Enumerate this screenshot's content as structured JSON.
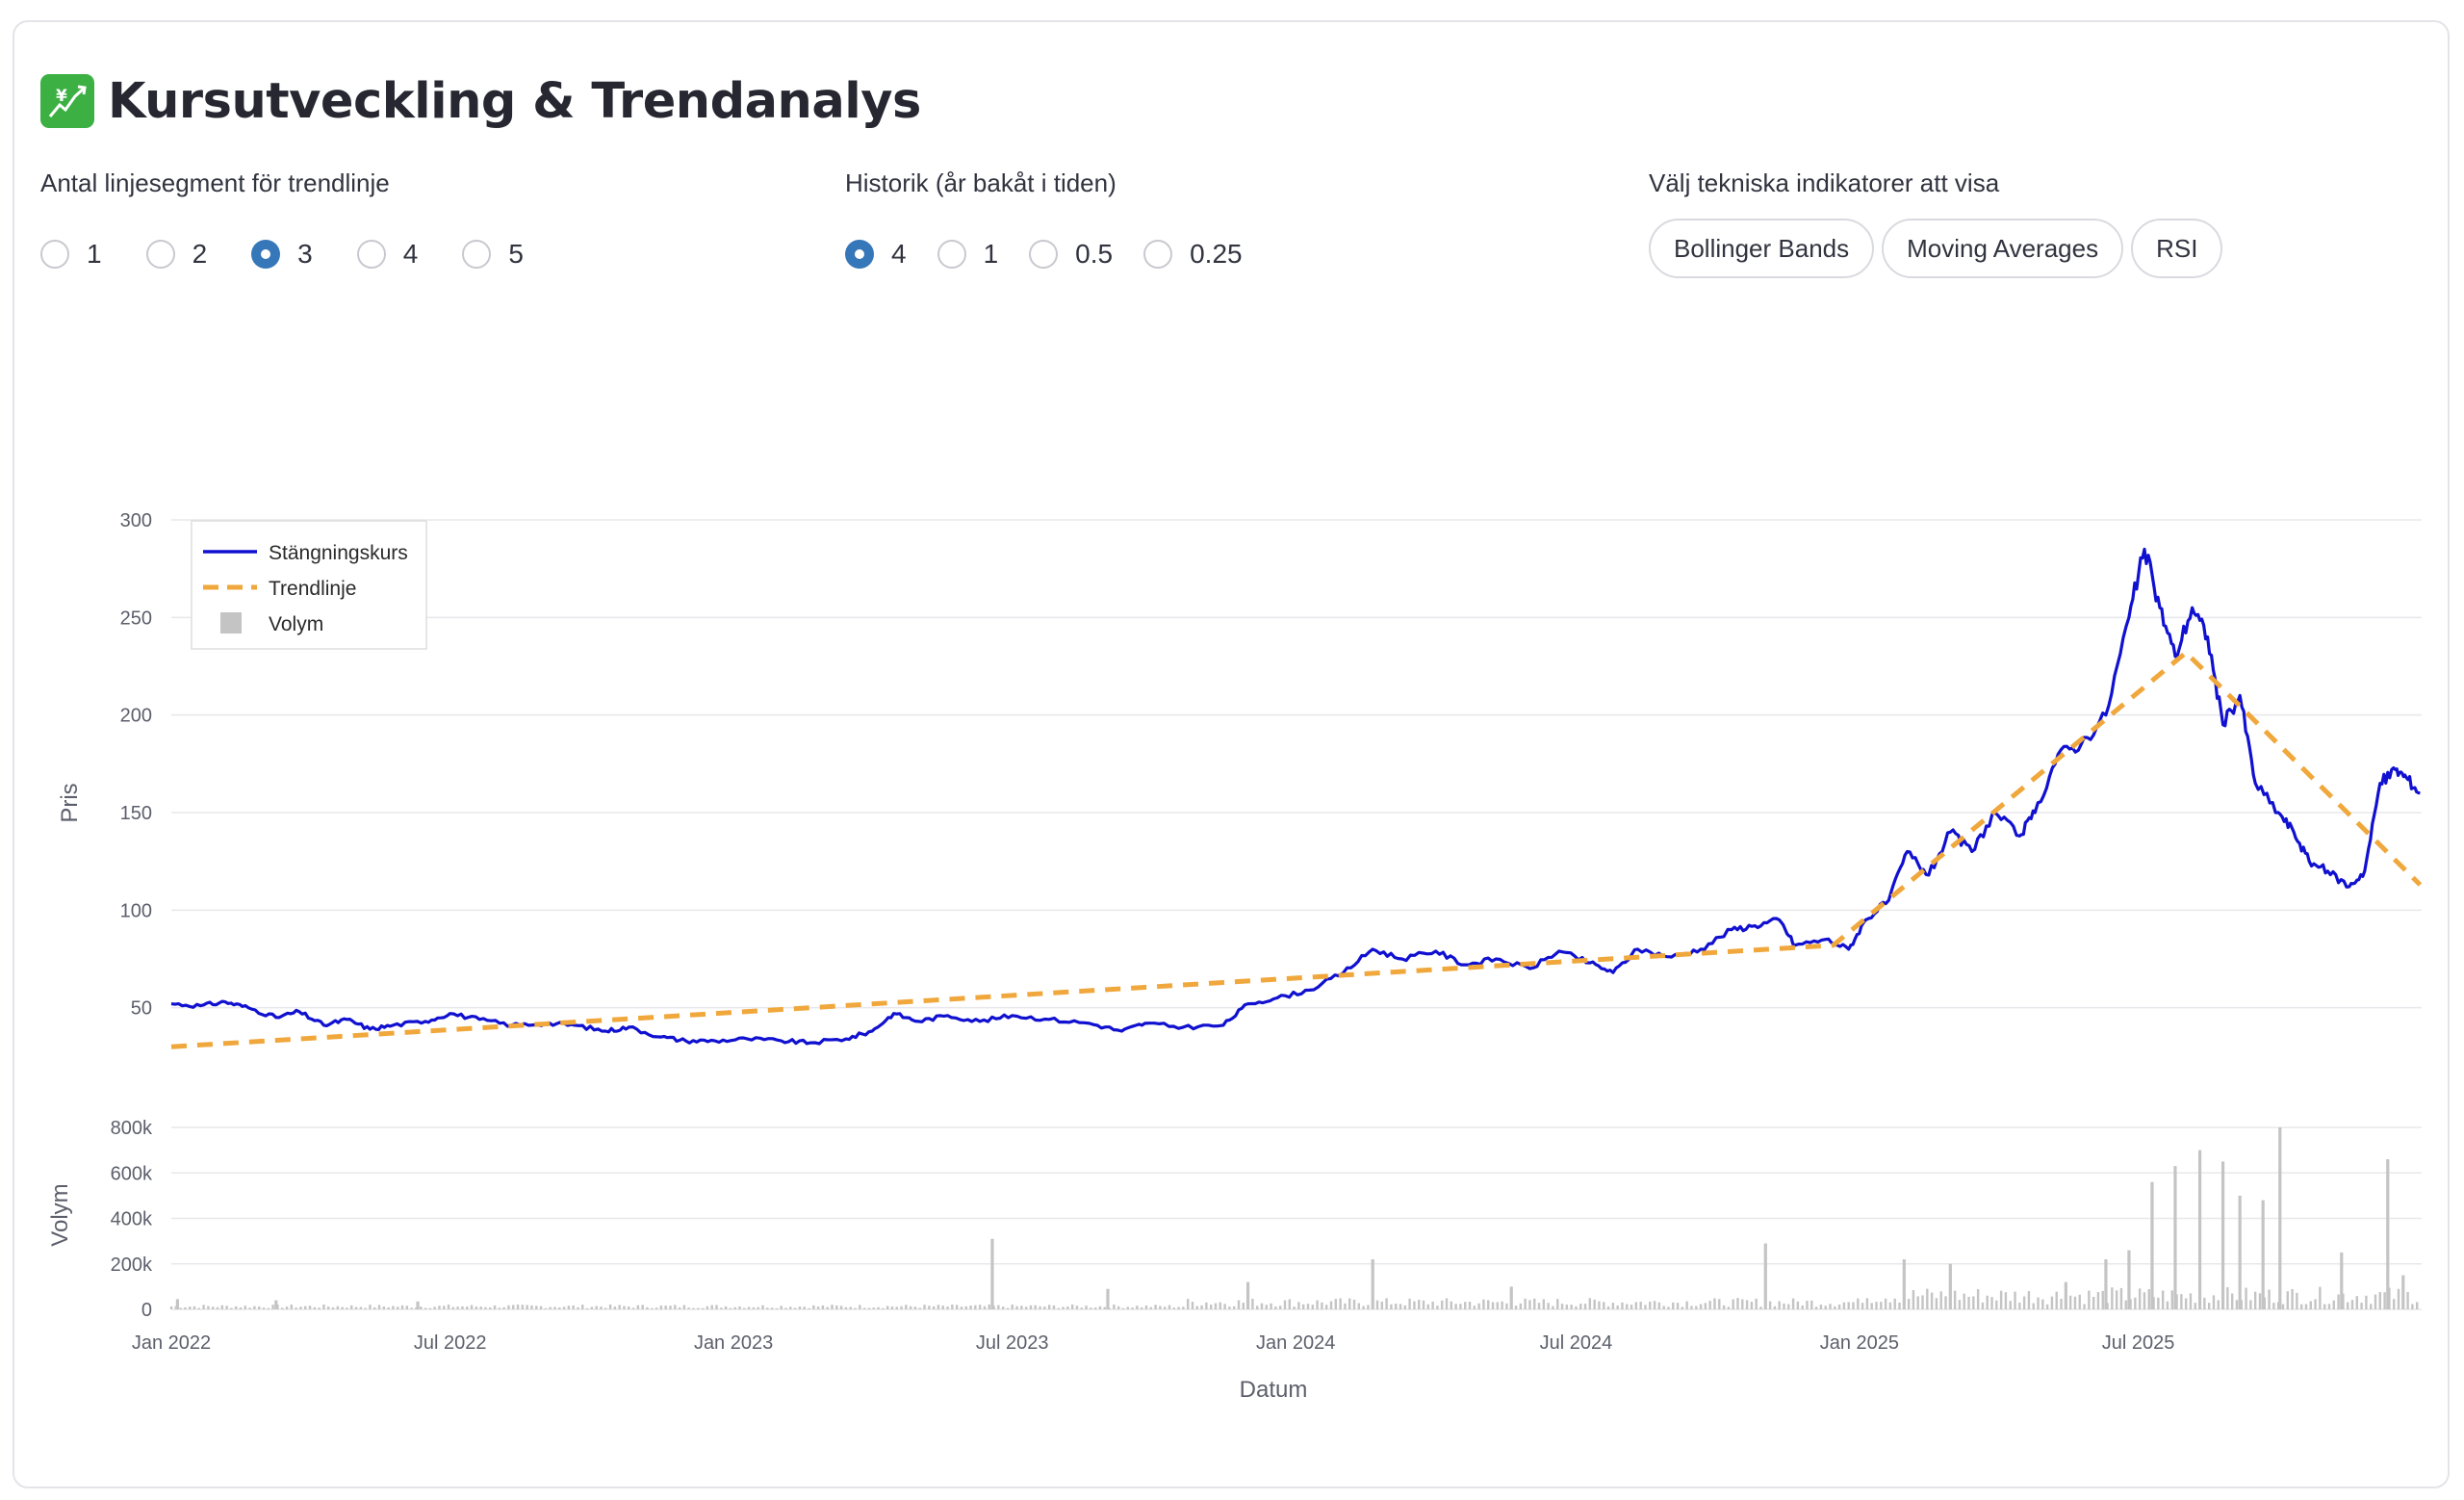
{
  "header": {
    "title": "Kursutveckling & Trendanalys",
    "icon": "chart-increasing-yen-icon"
  },
  "controls": {
    "segments": {
      "label": "Antal linjesegment för trendlinje",
      "options": [
        "1",
        "2",
        "3",
        "4",
        "5"
      ],
      "selected": "3"
    },
    "history": {
      "label": "Historik (år bakåt i tiden)",
      "options": [
        "4",
        "1",
        "0.5",
        "0.25"
      ],
      "selected": "4"
    },
    "indicators": {
      "label": "Välj tekniska indikatorer att visa",
      "options": [
        "Bollinger Bands",
        "Moving Averages",
        "RSI"
      ]
    }
  },
  "chart_data": {
    "type": "line",
    "xlabel": "Datum",
    "ylabel": "Pris",
    "ylabel_volume": "Volym",
    "ylim": [
      0,
      300
    ],
    "volume_ylim": [
      0,
      800000
    ],
    "y_ticks": [
      50,
      100,
      150,
      200,
      250,
      300
    ],
    "volume_ticks": [
      {
        "value": 0,
        "label": "0"
      },
      {
        "value": 200000,
        "label": "200k"
      },
      {
        "value": 400000,
        "label": "400k"
      },
      {
        "value": 600000,
        "label": "600k"
      },
      {
        "value": 800000,
        "label": "800k"
      }
    ],
    "x_ticks": [
      {
        "date": "2022-01-01",
        "label": "Jan 2022"
      },
      {
        "date": "2022-07-01",
        "label": "Jul 2022"
      },
      {
        "date": "2023-01-01",
        "label": "Jan 2023"
      },
      {
        "date": "2023-07-01",
        "label": "Jul 2023"
      },
      {
        "date": "2024-01-01",
        "label": "Jan 2024"
      },
      {
        "date": "2024-07-01",
        "label": "Jul 2024"
      },
      {
        "date": "2025-01-01",
        "label": "Jan 2025"
      },
      {
        "date": "2025-07-01",
        "label": "Jul 2025"
      }
    ],
    "x_range": [
      "2022-01-01",
      "2026-01-01"
    ],
    "grid": true,
    "legend_position": "top-left",
    "colors": {
      "price": "#1010d0",
      "trend": "#f0a73b",
      "volume": "#c4c4c4"
    },
    "series": [
      {
        "name": "Stängningskurs",
        "style": "solid",
        "points": [
          [
            "2022-01-01",
            52
          ],
          [
            "2022-01-20",
            51
          ],
          [
            "2022-02-05",
            53
          ],
          [
            "2022-02-20",
            50
          ],
          [
            "2022-03-10",
            45
          ],
          [
            "2022-03-25",
            48
          ],
          [
            "2022-04-10",
            41
          ],
          [
            "2022-04-25",
            44
          ],
          [
            "2022-05-10",
            39
          ],
          [
            "2022-05-25",
            41
          ],
          [
            "2022-06-15",
            43
          ],
          [
            "2022-07-01",
            47
          ],
          [
            "2022-07-20",
            44
          ],
          [
            "2022-08-10",
            41
          ],
          [
            "2022-09-01",
            42
          ],
          [
            "2022-09-20",
            41
          ],
          [
            "2022-10-10",
            38
          ],
          [
            "2022-10-25",
            40
          ],
          [
            "2022-11-15",
            35
          ],
          [
            "2022-12-01",
            33
          ],
          [
            "2022-12-20",
            33
          ],
          [
            "2023-01-10",
            34
          ],
          [
            "2023-02-01",
            33
          ],
          [
            "2023-02-20",
            32
          ],
          [
            "2023-03-15",
            34
          ],
          [
            "2023-04-01",
            38
          ],
          [
            "2023-04-15",
            47
          ],
          [
            "2023-05-01",
            43
          ],
          [
            "2023-05-20",
            46
          ],
          [
            "2023-06-10",
            43
          ],
          [
            "2023-07-01",
            46
          ],
          [
            "2023-07-25",
            44
          ],
          [
            "2023-08-20",
            42
          ],
          [
            "2023-09-10",
            38
          ],
          [
            "2023-09-25",
            42
          ],
          [
            "2023-10-20",
            40
          ],
          [
            "2023-11-15",
            41
          ],
          [
            "2023-12-01",
            52
          ],
          [
            "2023-12-20",
            55
          ],
          [
            "2024-01-10",
            59
          ],
          [
            "2024-02-01",
            68
          ],
          [
            "2024-02-20",
            80
          ],
          [
            "2024-03-10",
            75
          ],
          [
            "2024-04-01",
            79
          ],
          [
            "2024-04-20",
            72
          ],
          [
            "2024-05-10",
            75
          ],
          [
            "2024-06-01",
            70
          ],
          [
            "2024-06-20",
            79
          ],
          [
            "2024-07-10",
            73
          ],
          [
            "2024-07-25",
            68
          ],
          [
            "2024-08-10",
            80
          ],
          [
            "2024-09-01",
            76
          ],
          [
            "2024-09-20",
            80
          ],
          [
            "2024-10-10",
            90
          ],
          [
            "2024-10-25",
            92
          ],
          [
            "2024-11-10",
            95
          ],
          [
            "2024-11-20",
            82
          ],
          [
            "2024-12-10",
            85
          ],
          [
            "2024-12-25",
            80
          ],
          [
            "2025-01-05",
            95
          ],
          [
            "2025-01-20",
            105
          ],
          [
            "2025-02-01",
            130
          ],
          [
            "2025-02-15",
            118
          ],
          [
            "2025-03-01",
            140
          ],
          [
            "2025-03-15",
            130
          ],
          [
            "2025-03-30",
            150
          ],
          [
            "2025-04-15",
            138
          ],
          [
            "2025-04-25",
            150
          ],
          [
            "2025-05-10",
            180
          ],
          [
            "2025-05-25",
            185
          ],
          [
            "2025-06-10",
            200
          ],
          [
            "2025-06-25",
            250
          ],
          [
            "2025-07-05",
            285
          ],
          [
            "2025-07-15",
            255
          ],
          [
            "2025-07-25",
            230
          ],
          [
            "2025-08-05",
            255
          ],
          [
            "2025-08-15",
            240
          ],
          [
            "2025-08-25",
            195
          ],
          [
            "2025-09-05",
            210
          ],
          [
            "2025-09-15",
            165
          ],
          [
            "2025-09-30",
            150
          ],
          [
            "2025-10-10",
            140
          ],
          [
            "2025-10-20",
            125
          ],
          [
            "2025-11-01",
            120
          ],
          [
            "2025-11-15",
            112
          ],
          [
            "2025-11-25",
            120
          ],
          [
            "2025-12-05",
            165
          ],
          [
            "2025-12-15",
            172
          ],
          [
            "2025-12-22",
            168
          ],
          [
            "2025-12-31",
            160
          ]
        ]
      },
      {
        "name": "Trendlinje",
        "style": "dashed",
        "points": [
          [
            "2022-01-01",
            30
          ],
          [
            "2024-12-15",
            82
          ],
          [
            "2025-08-01",
            232
          ],
          [
            "2025-12-31",
            113
          ]
        ]
      },
      {
        "name": "Volym",
        "style": "bar",
        "spikes": [
          [
            "2022-01-05",
            45000
          ],
          [
            "2022-03-10",
            40000
          ],
          [
            "2022-06-10",
            35000
          ],
          [
            "2023-06-18",
            310000
          ],
          [
            "2023-09-01",
            90000
          ],
          [
            "2023-12-01",
            120000
          ],
          [
            "2024-02-20",
            220000
          ],
          [
            "2024-05-20",
            100000
          ],
          [
            "2024-11-01",
            290000
          ],
          [
            "2025-01-30",
            220000
          ],
          [
            "2025-03-01",
            200000
          ],
          [
            "2025-05-15",
            120000
          ],
          [
            "2025-06-10",
            220000
          ],
          [
            "2025-06-25",
            260000
          ],
          [
            "2025-07-10",
            560000
          ],
          [
            "2025-07-25",
            630000
          ],
          [
            "2025-08-10",
            700000
          ],
          [
            "2025-08-25",
            650000
          ],
          [
            "2025-09-05",
            500000
          ],
          [
            "2025-09-20",
            480000
          ],
          [
            "2025-10-01",
            800000
          ],
          [
            "2025-11-10",
            250000
          ],
          [
            "2025-12-10",
            660000
          ],
          [
            "2025-12-20",
            150000
          ]
        ]
      }
    ]
  }
}
